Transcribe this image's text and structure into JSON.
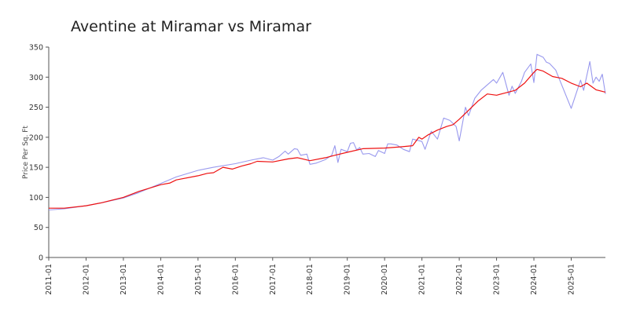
{
  "chart_data": {
    "type": "line",
    "title": "Aventine at Miramar vs Miramar",
    "xlabel": "",
    "ylabel": "Price Per Sq. Ft",
    "xlim": [
      "2011-01",
      "2025-12"
    ],
    "ylim": [
      0,
      350
    ],
    "yticks": [
      0,
      50,
      100,
      150,
      200,
      250,
      300,
      350
    ],
    "xticks": [
      "2011-01",
      "2012-01",
      "2013-01",
      "2014-01",
      "2015-01",
      "2016-01",
      "2017-01",
      "2018-01",
      "2019-01",
      "2020-01",
      "2021-01",
      "2022-01",
      "2023-01",
      "2024-01",
      "2025-01"
    ],
    "grid": false,
    "legend": "none",
    "series": [
      {
        "color": "#9999ee",
        "points": [
          [
            "2011-01",
            79
          ],
          [
            "2011-06",
            81
          ],
          [
            "2012-01",
            86
          ],
          [
            "2012-06",
            91
          ],
          [
            "2013-01",
            99
          ],
          [
            "2013-06",
            108
          ],
          [
            "2014-01",
            123
          ],
          [
            "2014-06",
            134
          ],
          [
            "2015-01",
            145
          ],
          [
            "2015-06",
            150
          ],
          [
            "2016-01",
            156
          ],
          [
            "2016-06",
            162
          ],
          [
            "2016-10",
            166
          ],
          [
            "2017-01",
            162
          ],
          [
            "2017-03",
            168
          ],
          [
            "2017-05",
            177
          ],
          [
            "2017-06",
            172
          ],
          [
            "2017-08",
            181
          ],
          [
            "2017-09",
            180
          ],
          [
            "2017-10",
            170
          ],
          [
            "2017-12",
            172
          ],
          [
            "2018-01",
            155
          ],
          [
            "2018-03",
            157
          ],
          [
            "2018-06",
            163
          ],
          [
            "2018-08",
            170
          ],
          [
            "2018-09",
            186
          ],
          [
            "2018-10",
            158
          ],
          [
            "2018-11",
            180
          ],
          [
            "2019-01",
            176
          ],
          [
            "2019-02",
            190
          ],
          [
            "2019-03",
            191
          ],
          [
            "2019-04",
            179
          ],
          [
            "2019-05",
            183
          ],
          [
            "2019-06",
            172
          ],
          [
            "2019-08",
            173
          ],
          [
            "2019-10",
            168
          ],
          [
            "2019-11",
            178
          ],
          [
            "2020-01",
            173
          ],
          [
            "2020-02",
            189
          ],
          [
            "2020-03",
            189
          ],
          [
            "2020-05",
            187
          ],
          [
            "2020-07",
            180
          ],
          [
            "2020-09",
            176
          ],
          [
            "2020-10",
            197
          ],
          [
            "2021-01",
            193
          ],
          [
            "2021-02",
            180
          ],
          [
            "2021-04",
            210
          ],
          [
            "2021-06",
            197
          ],
          [
            "2021-08",
            232
          ],
          [
            "2021-10",
            228
          ],
          [
            "2021-12",
            218
          ],
          [
            "2022-01",
            194
          ],
          [
            "2022-03",
            250
          ],
          [
            "2022-04",
            236
          ],
          [
            "2022-06",
            265
          ],
          [
            "2022-08",
            278
          ],
          [
            "2022-12",
            296
          ],
          [
            "2023-01",
            290
          ],
          [
            "2023-03",
            308
          ],
          [
            "2023-05",
            270
          ],
          [
            "2023-06",
            285
          ],
          [
            "2023-07",
            273
          ],
          [
            "2023-09",
            293
          ],
          [
            "2023-10",
            308
          ],
          [
            "2023-12",
            322
          ],
          [
            "2024-01",
            291
          ],
          [
            "2024-02",
            338
          ],
          [
            "2024-04",
            333
          ],
          [
            "2024-05",
            325
          ],
          [
            "2024-06",
            323
          ],
          [
            "2024-08",
            312
          ],
          [
            "2025-01",
            248
          ],
          [
            "2025-04",
            295
          ],
          [
            "2025-05",
            278
          ],
          [
            "2025-07",
            326
          ],
          [
            "2025-08",
            290
          ],
          [
            "2025-09",
            300
          ],
          [
            "2025-10",
            293
          ],
          [
            "2025-11",
            305
          ],
          [
            "2025-12",
            272
          ]
        ]
      },
      {
        "color": "#ee1111",
        "points": [
          [
            "2011-01",
            82
          ],
          [
            "2011-06",
            82
          ],
          [
            "2012-01",
            86
          ],
          [
            "2012-06",
            91
          ],
          [
            "2013-01",
            100
          ],
          [
            "2013-06",
            110
          ],
          [
            "2014-01",
            121
          ],
          [
            "2014-04",
            124
          ],
          [
            "2014-06",
            129
          ],
          [
            "2015-01",
            136
          ],
          [
            "2015-04",
            140
          ],
          [
            "2015-06",
            141
          ],
          [
            "2015-09",
            150
          ],
          [
            "2015-12",
            147
          ],
          [
            "2016-03",
            152
          ],
          [
            "2016-06",
            156
          ],
          [
            "2016-08",
            160
          ],
          [
            "2017-01",
            159
          ],
          [
            "2017-06",
            164
          ],
          [
            "2017-09",
            166
          ],
          [
            "2018-01",
            161
          ],
          [
            "2018-06",
            166
          ],
          [
            "2018-09",
            170
          ],
          [
            "2019-01",
            175
          ],
          [
            "2019-06",
            181
          ],
          [
            "2020-01",
            182
          ],
          [
            "2020-06",
            184
          ],
          [
            "2020-10",
            186
          ],
          [
            "2020-12",
            200
          ],
          [
            "2021-01",
            197
          ],
          [
            "2021-03",
            204
          ],
          [
            "2021-06",
            212
          ],
          [
            "2021-09",
            218
          ],
          [
            "2021-11",
            221
          ],
          [
            "2022-01",
            230
          ],
          [
            "2022-04",
            245
          ],
          [
            "2022-07",
            260
          ],
          [
            "2022-10",
            272
          ],
          [
            "2023-01",
            270
          ],
          [
            "2023-04",
            274
          ],
          [
            "2023-07",
            278
          ],
          [
            "2023-10",
            290
          ],
          [
            "2024-01",
            308
          ],
          [
            "2024-02",
            313
          ],
          [
            "2024-04",
            310
          ],
          [
            "2024-07",
            301
          ],
          [
            "2024-10",
            298
          ],
          [
            "2025-01",
            290
          ],
          [
            "2025-04",
            284
          ],
          [
            "2025-06",
            290
          ],
          [
            "2025-09",
            279
          ],
          [
            "2025-12",
            275
          ]
        ]
      }
    ]
  }
}
